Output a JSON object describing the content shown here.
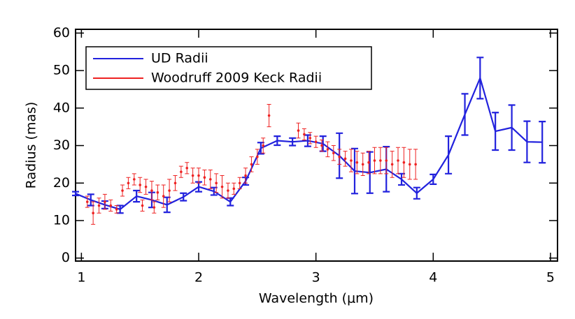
{
  "chart_data": {
    "type": "errorbar",
    "x_label": "Wavelength (μm)",
    "y_label": "Radius (mas)",
    "xlim": [
      0.95,
      5.06
    ],
    "ylim": [
      -0.8,
      61
    ],
    "xticks": [
      1,
      2,
      3,
      4,
      5
    ],
    "yticks": [
      0,
      10,
      20,
      30,
      40,
      50,
      60
    ],
    "legend": "upper left",
    "series": [
      {
        "name": "UD Radii",
        "color": "#2222dd",
        "style": "line",
        "x": [
          0.95,
          1.08,
          1.2,
          1.33,
          1.47,
          1.6,
          1.73,
          1.87,
          2.0,
          2.13,
          2.27,
          2.4,
          2.53,
          2.67,
          2.8,
          2.93,
          3.06,
          3.2,
          3.33,
          3.46,
          3.6,
          3.73,
          3.86,
          4.0,
          4.13,
          4.27,
          4.4,
          4.53,
          4.67,
          4.8,
          4.93
        ],
        "values": [
          17.2,
          15.5,
          14.2,
          13,
          16.5,
          15.5,
          14.2,
          16.3,
          19,
          17.8,
          15,
          20.5,
          29.3,
          31.3,
          31,
          31.3,
          30.5,
          27.3,
          23.2,
          22.8,
          23.7,
          21,
          17.3,
          21,
          27.5,
          38.3,
          48,
          33.8,
          34.8,
          31,
          30.9
        ],
        "errors": [
          0.5,
          1.5,
          1,
          1,
          1.5,
          2,
          2,
          1,
          1.3,
          1,
          1,
          1,
          1.5,
          1.2,
          1,
          1.5,
          2,
          6,
          6,
          5.5,
          6,
          1.5,
          1.5,
          1.3,
          5,
          5.5,
          5.5,
          5,
          6,
          5.5,
          5.5
        ]
      },
      {
        "name": "Woodruff 2009 Keck Radii",
        "color": "#ee2222",
        "style": "points",
        "x": [
          1.05,
          1.1,
          1.15,
          1.2,
          1.25,
          1.3,
          1.35,
          1.4,
          1.45,
          1.5,
          1.52,
          1.55,
          1.6,
          1.62,
          1.65,
          1.7,
          1.75,
          1.8,
          1.85,
          1.9,
          1.95,
          2.0,
          2.05,
          2.1,
          2.15,
          2.2,
          2.25,
          2.3,
          2.35,
          2.4,
          2.45,
          2.5,
          2.55,
          2.6,
          2.85,
          2.9,
          2.95,
          3.0,
          3.05,
          3.1,
          3.15,
          3.2,
          3.25,
          3.3,
          3.35,
          3.4,
          3.45,
          3.5,
          3.55,
          3.6,
          3.65,
          3.7,
          3.75,
          3.8,
          3.85
        ],
        "values": [
          15,
          12,
          14,
          15,
          14,
          13,
          18,
          20,
          21,
          19.5,
          14,
          19,
          18,
          13.5,
          17.5,
          16.5,
          18,
          20,
          23,
          24,
          22,
          22,
          21.5,
          21,
          20,
          19,
          18,
          18.5,
          20,
          22,
          25,
          27,
          30,
          38,
          34,
          33,
          32,
          31,
          30,
          29,
          28,
          27,
          26.5,
          26,
          25.5,
          25,
          25.5,
          26,
          26,
          26,
          25,
          26,
          25.5,
          25,
          25
        ],
        "errors": [
          1.5,
          3,
          2,
          2,
          1.5,
          1,
          1.5,
          1.5,
          1.5,
          2,
          1.5,
          2,
          2.5,
          1.5,
          2,
          3,
          3,
          2,
          1.5,
          1.5,
          2,
          2,
          2,
          2.5,
          2.5,
          3,
          2,
          1.5,
          1.5,
          2,
          2,
          2,
          2,
          3,
          2,
          1.5,
          1.5,
          1.5,
          1.5,
          2,
          2,
          2,
          2,
          3,
          3,
          3,
          3,
          3.5,
          3.5,
          3.5,
          3.5,
          3.5,
          4,
          4,
          4
        ]
      }
    ]
  }
}
